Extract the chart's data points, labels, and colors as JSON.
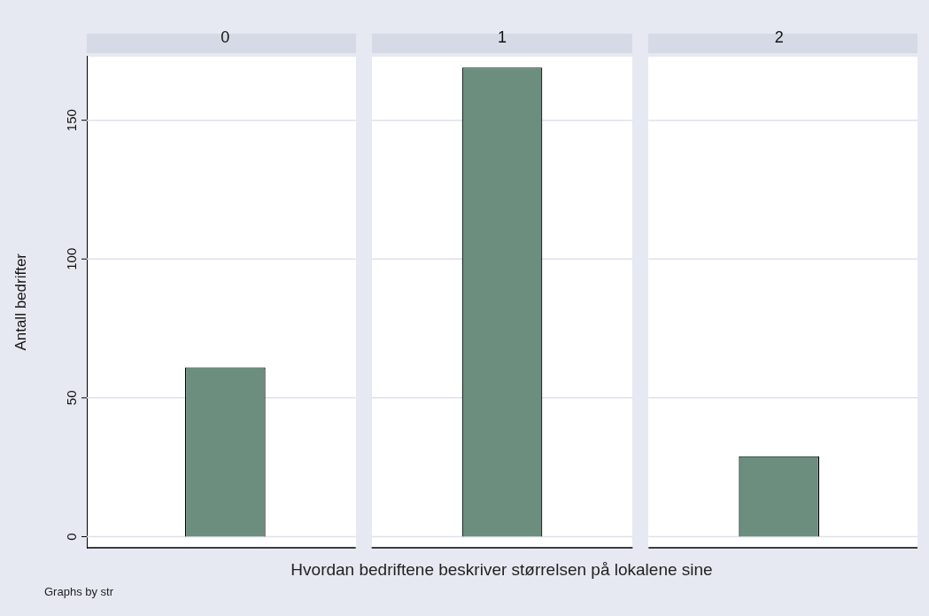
{
  "chart_data": {
    "type": "bar",
    "xlabel": "Hvordan bedriftene beskriver størrelsen på lokalene sine",
    "ylabel": "Antall bedrifter",
    "categories": [
      "0",
      "1",
      "2"
    ],
    "values": [
      61,
      169,
      29
    ],
    "color": "#6b8e7f",
    "ylim": [
      -4,
      173
    ],
    "yticks": [
      0,
      50,
      100,
      150
    ],
    "grid": "y",
    "annotations": [
      "Graphs by str"
    ]
  }
}
